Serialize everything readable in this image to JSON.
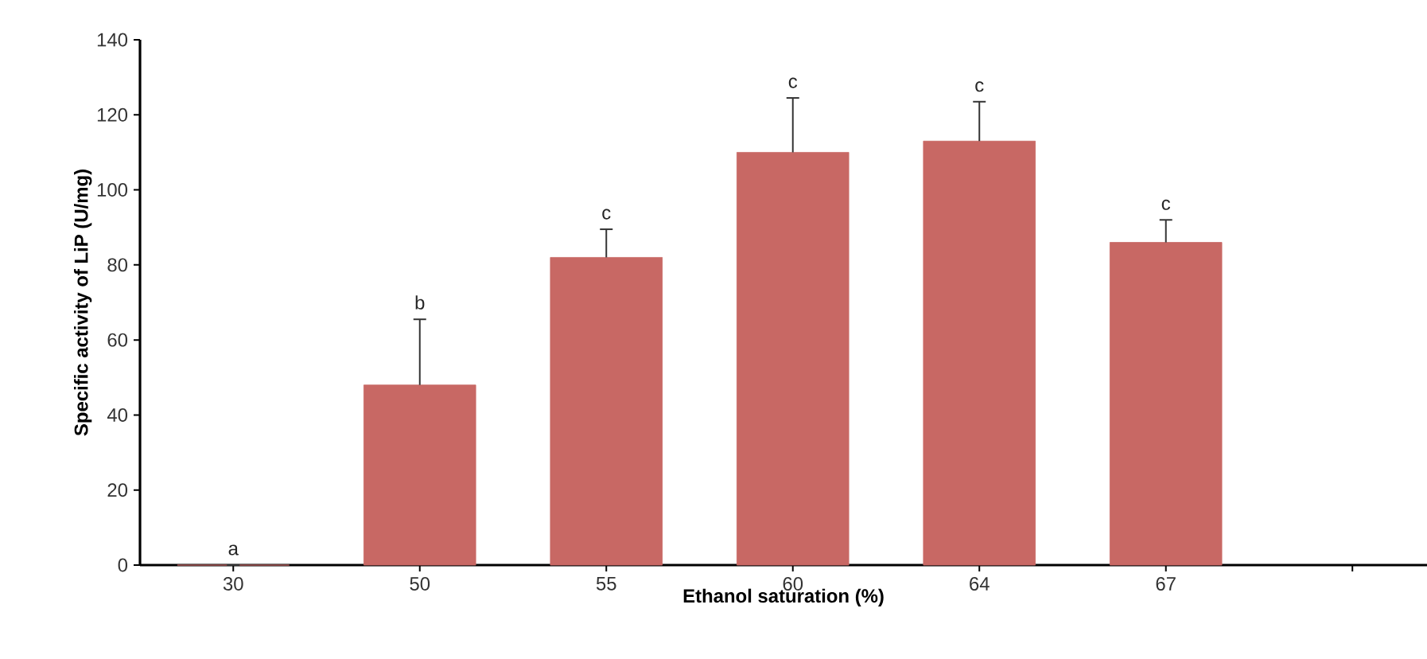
{
  "chart_data": {
    "type": "bar",
    "xlabel": "Ethanol saturation (%)",
    "ylabel": "Specific activity of LiP (U/mg)",
    "categories": [
      "30",
      "50",
      "55",
      "60",
      "64",
      "67",
      null
    ],
    "values": [
      0,
      48,
      82,
      110,
      113,
      86,
      null
    ],
    "errors": [
      null,
      [
        48,
        65.5
      ],
      [
        82,
        89.5
      ],
      [
        110,
        124.5
      ],
      [
        113,
        123.5
      ],
      [
        86,
        92
      ],
      null
    ],
    "color": "#c86864",
    "ylim": [
      0,
      140
    ],
    "yticks": [
      0,
      20,
      40,
      60,
      80,
      100,
      120,
      140
    ],
    "annotations": [
      "a",
      "b",
      "c",
      "c",
      "c",
      "c"
    ]
  }
}
